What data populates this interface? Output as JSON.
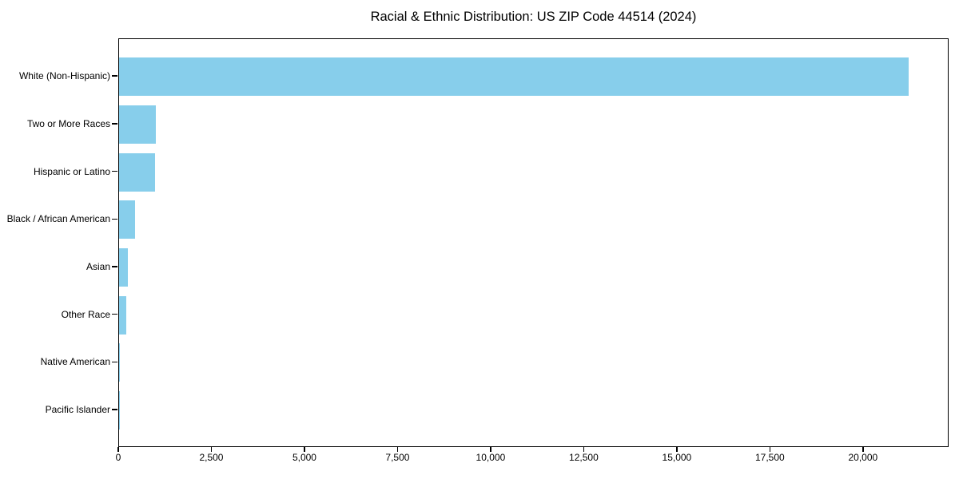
{
  "chart_data": {
    "type": "bar",
    "orientation": "horizontal",
    "title": "Racial & Ethnic Distribution: US ZIP Code 44514 (2024)",
    "categories": [
      "White (Non-Hispanic)",
      "Two or More Races",
      "Hispanic or Latino",
      "Black / African American",
      "Asian",
      "Other Race",
      "Native American",
      "Pacific Islander"
    ],
    "values": [
      21200,
      990,
      960,
      420,
      235,
      190,
      15,
      5
    ],
    "xlabel": "",
    "ylabel": "",
    "xlim": [
      0,
      22300
    ],
    "x_ticks": [
      0,
      2500,
      5000,
      7500,
      10000,
      12500,
      15000,
      17500,
      20000
    ],
    "x_tick_labels": [
      "0",
      "2,500",
      "5,000",
      "7,500",
      "10,000",
      "12,500",
      "15,000",
      "17,500",
      "20,000"
    ],
    "bar_color": "#87CEEB",
    "background_color": "#ffffff",
    "axis_color": "#000000",
    "grid": false,
    "legend": null
  }
}
